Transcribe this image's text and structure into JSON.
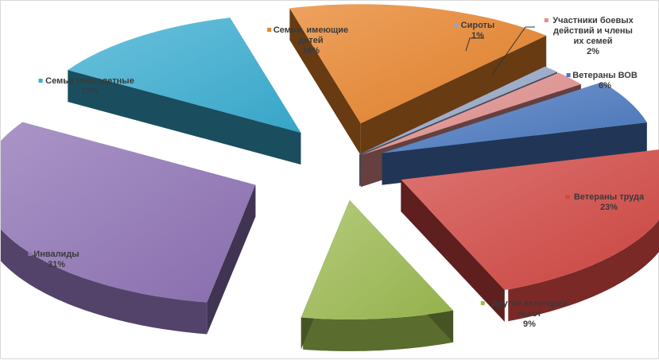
{
  "chart_data": {
    "type": "pie",
    "style": "3d-exploded",
    "title": "",
    "unit": "%",
    "slices": [
      {
        "name": "Семьи, имеющие детей",
        "label_lines": [
          "Семьи, имеющие",
          "детей"
        ],
        "value": 16,
        "value_label": "16%",
        "color": "#e8832a"
      },
      {
        "name": "Сироты",
        "label_lines": [
          "Сироты"
        ],
        "value": 1,
        "value_label": "1%",
        "color": "#94a6c6"
      },
      {
        "name": "Участники боевых действий и члены их семей",
        "label_lines": [
          "Участники боевых",
          "действий и члены",
          "их семей"
        ],
        "value": 2,
        "value_label": "2%",
        "color": "#e08f8c"
      },
      {
        "name": "Ветераны ВОВ",
        "label_lines": [
          "Ветераны ВОВ"
        ],
        "value": 6,
        "value_label": "6%",
        "color": "#4a78c0"
      },
      {
        "name": "Ветераны труда",
        "label_lines": [
          "Ветераны труда"
        ],
        "value": 23,
        "value_label": "23%",
        "color": "#d24642"
      },
      {
        "name": "Другие категории льгот",
        "label_lines": [
          "Другие категории",
          "льгот"
        ],
        "value": 9,
        "value_label": "9%",
        "color": "#9cba50"
      },
      {
        "name": "Инвалиды",
        "label_lines": [
          "Инвалиды"
        ],
        "value": 31,
        "value_label": "31%",
        "color": "#8f73b6"
      },
      {
        "name": "Семьи многодетные",
        "label_lines": [
          "Семьи многодетные"
        ],
        "value": 12,
        "value_label": "12%",
        "color": "#3aaed2"
      }
    ]
  }
}
